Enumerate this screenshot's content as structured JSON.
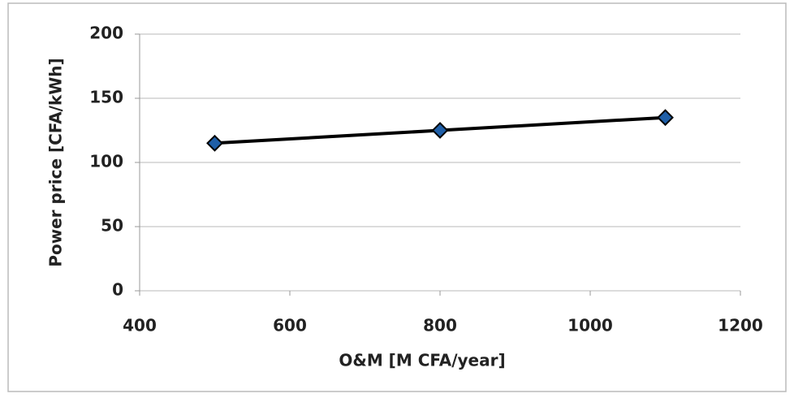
{
  "chart_data": {
    "type": "line",
    "x_label": "O&M [M CFA/year]",
    "y_label": "Power price [CFA/kWh]",
    "x": [
      500,
      800,
      1100
    ],
    "values": [
      115,
      125,
      135
    ],
    "color": "#000000",
    "marker_color": "#1f5fa8",
    "xlim": [
      400,
      1200
    ],
    "xticks": [
      400,
      600,
      800,
      1000,
      1200
    ],
    "ylim": [
      0,
      200
    ],
    "yticks": [
      0,
      50,
      100,
      150,
      200
    ],
    "grid": true
  }
}
